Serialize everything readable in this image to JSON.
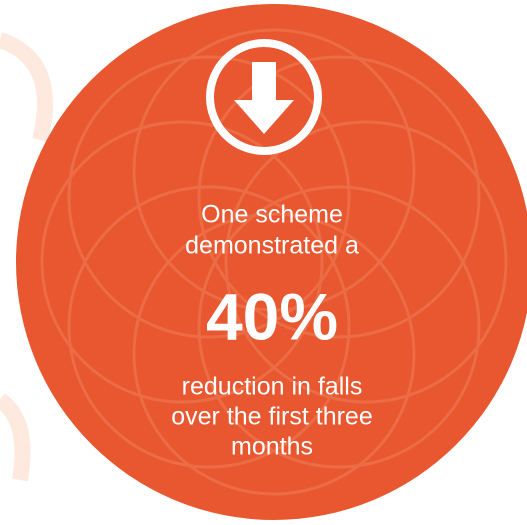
{
  "infographic": {
    "intro_lines": [
      "One scheme",
      "demonstrated a"
    ],
    "statistic": "40%",
    "outro_lines": [
      "reduction in falls",
      "over the first three",
      "months"
    ]
  }
}
